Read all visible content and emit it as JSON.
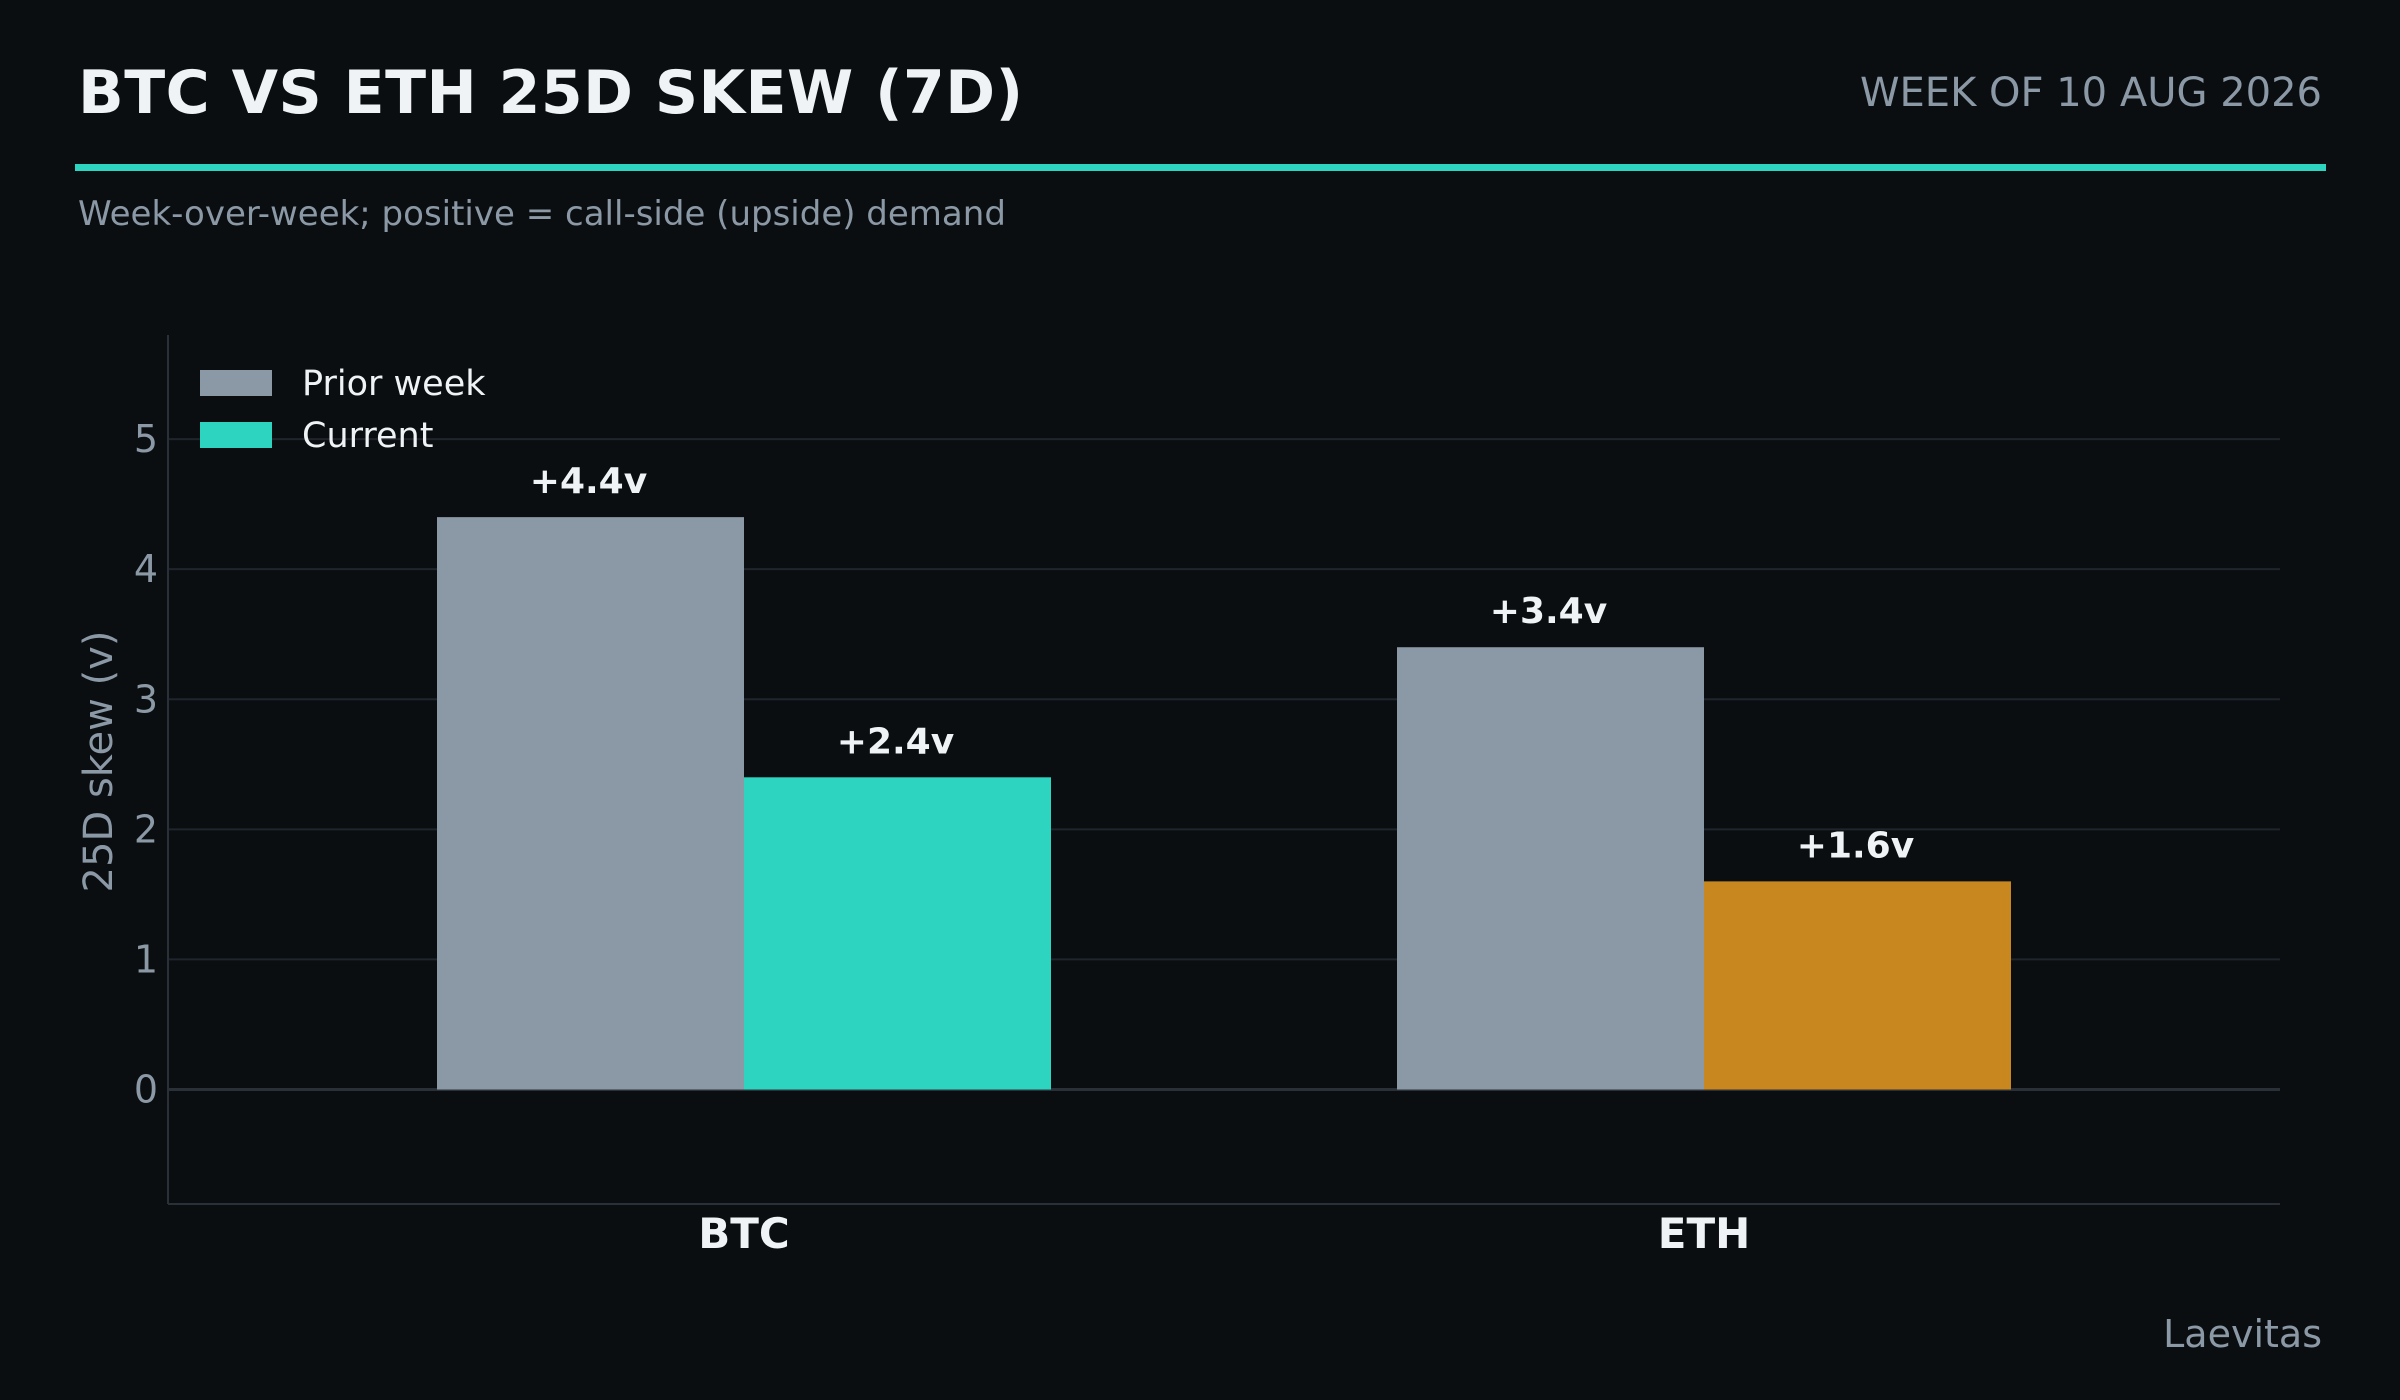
{
  "header": {
    "title": "BTC VS ETH 25D SKEW (7D)",
    "week": "WEEK OF 10 AUG 2026",
    "subtitle": "Week-over-week; positive = call-side (upside) demand",
    "source": "Laevitas"
  },
  "colors": {
    "background": "#0b0e11",
    "accent": "#2dd4bf",
    "prior": "#8b98a5",
    "btc_current": "#2dd4bf",
    "eth_current": "#c8871f",
    "text": "#f0f3f6",
    "muted": "#8b98a5",
    "grid": "#1f252c"
  },
  "chart_data": {
    "type": "bar",
    "categories": [
      "BTC",
      "ETH"
    ],
    "series": [
      {
        "name": "Prior week",
        "values": [
          4.4,
          3.4
        ],
        "labels": [
          "+4.4v",
          "+3.4v"
        ],
        "colors": [
          "#8b98a5",
          "#8b98a5"
        ]
      },
      {
        "name": "Current",
        "values": [
          2.4,
          1.6
        ],
        "labels": [
          "+2.4v",
          "+1.6v"
        ],
        "colors": [
          "#2dd4bf",
          "#c8871f"
        ]
      }
    ],
    "ylabel": "25D skew (v)",
    "xlabel": "",
    "ylim": [
      -0.88,
      5.8
    ],
    "yticks": [
      0,
      1,
      2,
      3,
      4,
      5
    ],
    "grid": true,
    "legend_position": "top-left"
  }
}
